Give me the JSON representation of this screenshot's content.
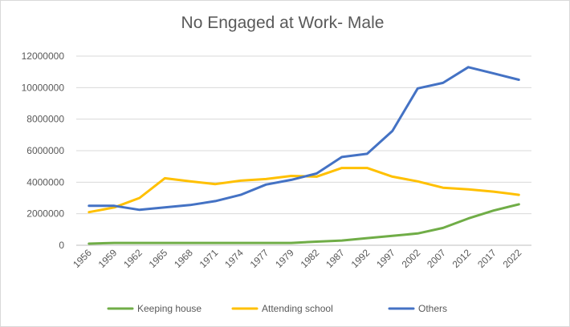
{
  "chart_data": {
    "type": "line",
    "title": "No Engaged at Work- Male",
    "xlabel": "",
    "ylabel": "",
    "categories": [
      "1956",
      "1959",
      "1962",
      "1965",
      "1968",
      "1971",
      "1974",
      "1977",
      "1979",
      "1982",
      "1987",
      "1992",
      "1997",
      "2002",
      "2007",
      "2012",
      "2017",
      "2022"
    ],
    "ylim": [
      0,
      12000000
    ],
    "yticks": [
      0,
      2000000,
      4000000,
      6000000,
      8000000,
      10000000,
      12000000
    ],
    "ytick_labels": [
      "0",
      "2000000",
      "4000000",
      "6000000",
      "8000000",
      "10000000",
      "12000000"
    ],
    "grid": true,
    "legend_position": "bottom",
    "series": [
      {
        "name": "Keeping house",
        "color": "#70ad47",
        "values": [
          100000,
          150000,
          150000,
          150000,
          150000,
          150000,
          150000,
          150000,
          150000,
          230000,
          300000,
          450000,
          600000,
          750000,
          1100000,
          1700000,
          2200000,
          2600000
        ]
      },
      {
        "name": "Attending school",
        "color": "#ffc000",
        "values": [
          2100000,
          2400000,
          3000000,
          4250000,
          4050000,
          3880000,
          4100000,
          4200000,
          4400000,
          4350000,
          4900000,
          4900000,
          4350000,
          4050000,
          3650000,
          3550000,
          3400000,
          3200000
        ]
      },
      {
        "name": "Others",
        "color": "#4472c4",
        "values": [
          2500000,
          2500000,
          2250000,
          2400000,
          2550000,
          2800000,
          3200000,
          3850000,
          4150000,
          4550000,
          5600000,
          5800000,
          7250000,
          9950000,
          10300000,
          11300000,
          10900000,
          10500000
        ]
      }
    ]
  }
}
